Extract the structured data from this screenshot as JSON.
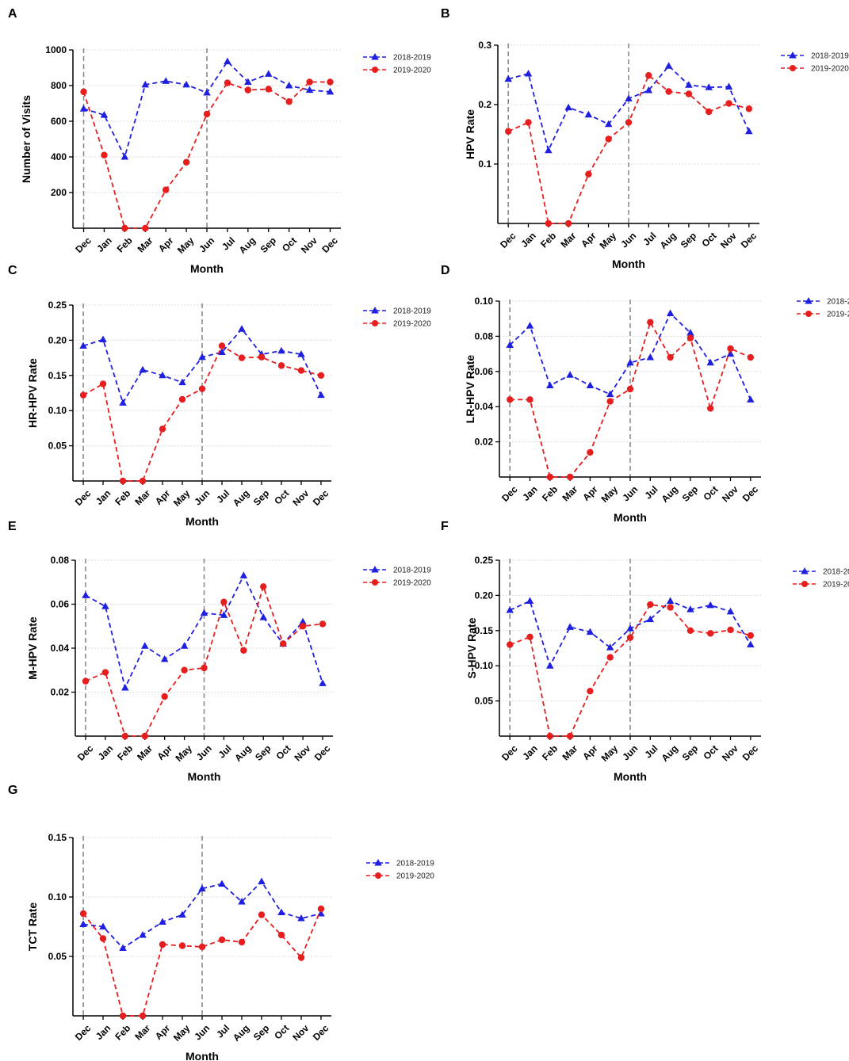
{
  "figure_title": "",
  "legend_series": [
    "2018-2019",
    "2019-2020"
  ],
  "colors": {
    "series_1": "#1f1fe0",
    "series_2": "#e61e1e",
    "reference_line": "#8a8a8a",
    "grid": "#d9d9d9"
  },
  "chart_data": [
    {
      "panel": "A",
      "type": "line",
      "title": "",
      "xlabel": "Month",
      "ylabel": "Number of Visits",
      "categories": [
        "Dec",
        "Jan",
        "Feb",
        "Mar",
        "Apr",
        "May",
        "Jun",
        "Jul",
        "Aug",
        "Sep",
        "Oct",
        "Nov",
        "Dec"
      ],
      "ylim": [
        0,
        1000
      ],
      "yticks": [
        200,
        400,
        600,
        800,
        1000
      ],
      "ytick_labels": [
        "200",
        "400",
        "600",
        "800",
        "1000"
      ],
      "reference_lines_at": [
        "Dec",
        "Jun"
      ],
      "series": [
        {
          "name": "2018-2019",
          "marker": "triangle",
          "values": [
            670,
            635,
            400,
            805,
            825,
            805,
            760,
            935,
            820,
            865,
            800,
            775,
            765
          ]
        },
        {
          "name": "2019-2020",
          "marker": "circle",
          "values": [
            765,
            410,
            0,
            0,
            215,
            370,
            640,
            815,
            775,
            780,
            710,
            820,
            820
          ]
        }
      ]
    },
    {
      "panel": "B",
      "type": "line",
      "title": "",
      "xlabel": "Month",
      "ylabel": "HPV Rate",
      "categories": [
        "Dec",
        "Jan",
        "Feb",
        "Mar",
        "Apr",
        "May",
        "Jun",
        "Jul",
        "Aug",
        "Sep",
        "Oct",
        "Nov",
        "Dec"
      ],
      "ylim": [
        0,
        0.3
      ],
      "yticks": [
        0.1,
        0.2,
        0.3
      ],
      "ytick_labels": [
        "0.1",
        "0.2",
        "0.3"
      ],
      "reference_lines_at": [
        "Dec",
        "Jun"
      ],
      "series": [
        {
          "name": "2018-2019",
          "marker": "triangle",
          "values": [
            0.243,
            0.252,
            0.123,
            0.195,
            0.183,
            0.167,
            0.21,
            0.224,
            0.265,
            0.233,
            0.229,
            0.23,
            0.155
          ]
        },
        {
          "name": "2019-2020",
          "marker": "circle",
          "values": [
            0.155,
            0.17,
            0.0,
            0.0,
            0.083,
            0.142,
            0.17,
            0.249,
            0.222,
            0.218,
            0.188,
            0.202,
            0.193
          ]
        }
      ]
    },
    {
      "panel": "C",
      "type": "line",
      "title": "",
      "xlabel": "Month",
      "ylabel": "HR-HPV Rate",
      "categories": [
        "Dec",
        "Jan",
        "Feb",
        "Mar",
        "Apr",
        "May",
        "Jun",
        "Jul",
        "Aug",
        "Sep",
        "Oct",
        "Nov",
        "Dec"
      ],
      "ylim": [
        0,
        0.25
      ],
      "yticks": [
        0.05,
        0.1,
        0.15,
        0.2,
        0.25
      ],
      "ytick_labels": [
        "0.05",
        "0.10",
        "0.15",
        "0.20",
        "0.25"
      ],
      "reference_lines_at": [
        "Dec",
        "Jun"
      ],
      "series": [
        {
          "name": "2018-2019",
          "marker": "triangle",
          "values": [
            0.192,
            0.201,
            0.111,
            0.158,
            0.15,
            0.14,
            0.176,
            0.183,
            0.216,
            0.18,
            0.185,
            0.18,
            0.122
          ]
        },
        {
          "name": "2019-2020",
          "marker": "circle",
          "values": [
            0.122,
            0.138,
            0.0,
            0.0,
            0.074,
            0.116,
            0.131,
            0.192,
            0.175,
            0.176,
            0.164,
            0.157,
            0.15
          ]
        }
      ]
    },
    {
      "panel": "D",
      "type": "line",
      "title": "",
      "xlabel": "Month",
      "ylabel": "LR-HPV Rate",
      "categories": [
        "Dec",
        "Jan",
        "Feb",
        "Mar",
        "Apr",
        "May",
        "Jun",
        "Jul",
        "Aug",
        "Sep",
        "Oct",
        "Nov",
        "Dec"
      ],
      "ylim": [
        0,
        0.1
      ],
      "yticks": [
        0.02,
        0.04,
        0.06,
        0.08,
        0.1
      ],
      "ytick_labels": [
        "0.02",
        "0.04",
        "0.06",
        "0.08",
        "0.10"
      ],
      "reference_lines_at": [
        "Dec",
        "Jun"
      ],
      "series": [
        {
          "name": "2018-2019",
          "marker": "triangle",
          "values": [
            0.075,
            0.086,
            0.052,
            0.058,
            0.052,
            0.047,
            0.065,
            0.068,
            0.093,
            0.082,
            0.065,
            0.07,
            0.044
          ]
        },
        {
          "name": "2019-2020",
          "marker": "circle",
          "values": [
            0.044,
            0.044,
            0.0,
            0.0,
            0.014,
            0.043,
            0.05,
            0.088,
            0.068,
            0.079,
            0.039,
            0.073,
            0.068
          ]
        }
      ]
    },
    {
      "panel": "E",
      "type": "line",
      "title": "",
      "xlabel": "Month",
      "ylabel": "M-HPV Rate",
      "categories": [
        "Dec",
        "Jan",
        "Feb",
        "Mar",
        "Apr",
        "May",
        "Jun",
        "Jul",
        "Aug",
        "Sep",
        "Oct",
        "Nov",
        "Dec"
      ],
      "ylim": [
        0,
        0.08
      ],
      "yticks": [
        0.02,
        0.04,
        0.06,
        0.08
      ],
      "ytick_labels": [
        "0.02",
        "0.04",
        "0.06",
        "0.08"
      ],
      "reference_lines_at": [
        "Dec",
        "Jun"
      ],
      "series": [
        {
          "name": "2018-2019",
          "marker": "triangle",
          "values": [
            0.064,
            0.059,
            0.022,
            0.041,
            0.035,
            0.041,
            0.056,
            0.055,
            0.073,
            0.054,
            0.042,
            0.052,
            0.024
          ]
        },
        {
          "name": "2019-2020",
          "marker": "circle",
          "values": [
            0.025,
            0.029,
            0.0,
            0.0,
            0.018,
            0.03,
            0.031,
            0.061,
            0.039,
            0.068,
            0.042,
            0.05,
            0.051
          ]
        }
      ]
    },
    {
      "panel": "F",
      "type": "line",
      "title": "",
      "xlabel": "Month",
      "ylabel": "S-HPV Rate",
      "categories": [
        "Dec",
        "Jan",
        "Feb",
        "Mar",
        "Apr",
        "May",
        "Jun",
        "Jul",
        "Aug",
        "Sep",
        "Oct",
        "Nov",
        "Dec"
      ],
      "ylim": [
        0,
        0.25
      ],
      "yticks": [
        0.05,
        0.1,
        0.15,
        0.2,
        0.25
      ],
      "ytick_labels": [
        "0.05",
        "0.10",
        "0.15",
        "0.20",
        "0.25"
      ],
      "reference_lines_at": [
        "Dec",
        "Jun"
      ],
      "series": [
        {
          "name": "2018-2019",
          "marker": "triangle",
          "values": [
            0.179,
            0.192,
            0.1,
            0.155,
            0.148,
            0.126,
            0.153,
            0.166,
            0.192,
            0.18,
            0.186,
            0.177,
            0.13
          ]
        },
        {
          "name": "2019-2020",
          "marker": "circle",
          "values": [
            0.13,
            0.141,
            0.0,
            0.0,
            0.064,
            0.112,
            0.14,
            0.187,
            0.183,
            0.15,
            0.146,
            0.151,
            0.143
          ]
        }
      ]
    },
    {
      "panel": "G",
      "type": "line",
      "title": "",
      "xlabel": "Month",
      "ylabel": "TCT Rate",
      "categories": [
        "Dec",
        "Jan",
        "Feb",
        "Mar",
        "Apr",
        "May",
        "Jun",
        "Jul",
        "Aug",
        "Sep",
        "Oct",
        "Nov",
        "Dec"
      ],
      "ylim": [
        0,
        0.15
      ],
      "yticks": [
        0.05,
        0.1,
        0.15
      ],
      "ytick_labels": [
        "0.05",
        "0.10",
        "0.15"
      ],
      "reference_lines_at": [
        "Dec",
        "Jun"
      ],
      "series": [
        {
          "name": "2018-2019",
          "marker": "triangle",
          "values": [
            0.077,
            0.075,
            0.057,
            0.068,
            0.079,
            0.085,
            0.107,
            0.111,
            0.096,
            0.113,
            0.087,
            0.082,
            0.086
          ]
        },
        {
          "name": "2019-2020",
          "marker": "circle",
          "values": [
            0.086,
            0.065,
            0.0,
            0.0,
            0.06,
            0.059,
            0.058,
            0.064,
            0.062,
            0.085,
            0.068,
            0.049,
            0.09
          ]
        }
      ]
    }
  ]
}
